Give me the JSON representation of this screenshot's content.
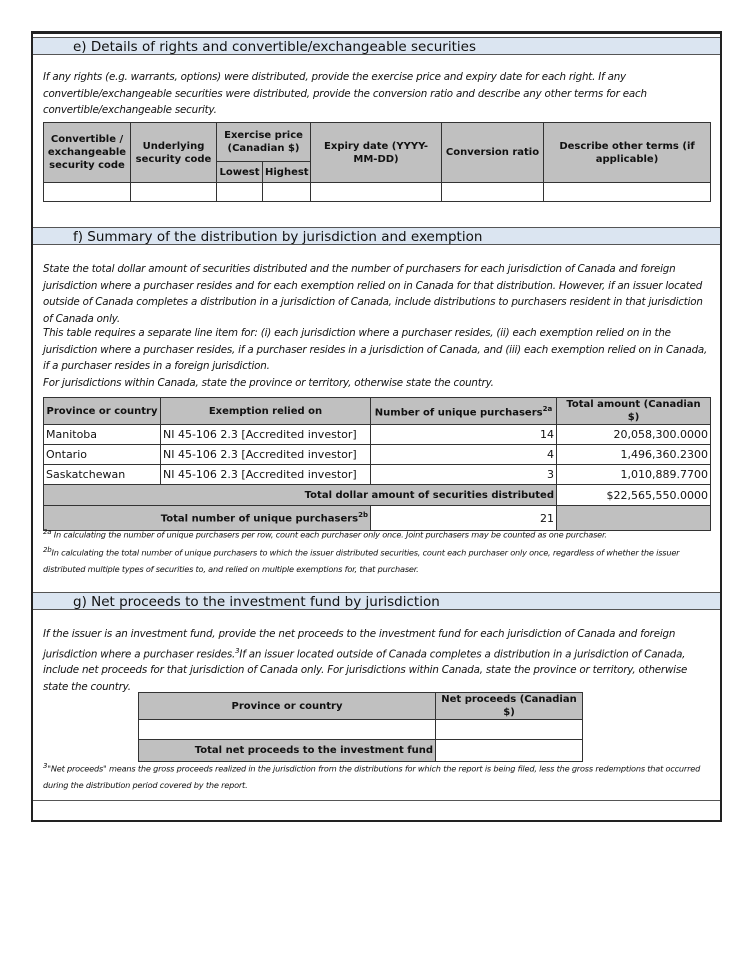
{
  "section_e": {
    "title": "e) Details of rights and convertible/exchangeable securities",
    "instructions": "If any rights (e.g. warrants, options) were distributed, provide the exercise price and expiry date for each right. If any convertible/exchangeable securities were distributed, provide the conversion ratio and describe any other terms for each convertible/exchangeable security.",
    "columns": {
      "code": "Convertible / exchangeable security code",
      "underlying": "Underlying security code",
      "exercise": "Exercise price (Canadian $)",
      "lowest": "Lowest",
      "highest": "Highest",
      "expiry": "Expiry date (YYYY-MM-DD)",
      "ratio": "Conversion ratio",
      "other": "Describe other terms (if applicable)"
    }
  },
  "section_f": {
    "title": "f) Summary of the distribution by jurisdiction and exemption",
    "para1": "State the total dollar amount of securities distributed and the number of purchasers for each jurisdiction of Canada and foreign jurisdiction where a purchaser resides and for each exemption relied on in Canada for that distribution. However, if an issuer located outside of Canada completes a distribution in a jurisdiction of Canada, include distributions to purchasers resident in that jurisdiction of Canada only.",
    "para2": "This table requires a separate line item for: (i) each jurisdiction where a purchaser resides, (ii) each exemption relied on in the jurisdiction where a purchaser resides, if a purchaser resides in a jurisdiction of Canada, and (iii) each exemption relied on in Canada, if a purchaser resides in a foreign jurisdiction.",
    "para3": "For jurisdictions within Canada, state the province or territory, otherwise state the country.",
    "columns": {
      "province": "Province or country",
      "exemption": "Exemption relied on",
      "purchasers": "Number of unique purchasers",
      "purchasers_sup": "2a",
      "amount": "Total amount (Canadian $)"
    },
    "rows": [
      {
        "province": "Manitoba",
        "exemption": "NI 45-106 2.3 [Accredited investor]",
        "purchasers": "14",
        "amount": "20,058,300.0000"
      },
      {
        "province": "Ontario",
        "exemption": "NI 45-106 2.3 [Accredited investor]",
        "purchasers": "4",
        "amount": "1,496,360.2300"
      },
      {
        "province": "Saskatchewan",
        "exemption": "NI 45-106 2.3 [Accredited investor]",
        "purchasers": "3",
        "amount": "1,010,889.7700"
      }
    ],
    "total_amount_label": "Total dollar amount of securities distributed",
    "total_amount": "$22,565,550.0000",
    "total_purchasers_label": "Total number of unique purchasers",
    "total_purchasers_sup": "2b",
    "total_purchasers": "21",
    "footnote_2a_mark": "2a",
    "footnote_2a": "In calculating the number of unique purchasers per row, count each purchaser only once. Joint purchasers may be counted as one purchaser.",
    "footnote_2b_mark": "2b",
    "footnote_2b": "In calculating the total number of unique purchasers to which the issuer distributed securities, count each purchaser only once, regardless of whether the issuer distributed multiple types of securities to, and relied on multiple exemptions for, that purchaser."
  },
  "section_g": {
    "title": "g) Net proceeds to the investment fund by jurisdiction",
    "para_a": "If the issuer is an investment fund, provide the net proceeds to the investment fund for each jurisdiction of Canada and foreign jurisdiction where a purchaser resides.",
    "para_sup": "3",
    "para_b": "If an issuer located outside of Canada completes a distribution in a jurisdiction of Canada, include net proceeds for that jurisdiction of Canada only. For jurisdictions within Canada, state the province or territory, otherwise state the country.",
    "columns": {
      "province": "Province or country",
      "net": "Net proceeds (Canadian $)"
    },
    "total_label": "Total net proceeds to the investment fund",
    "footnote_3_mark": "3",
    "footnote_3": "\"Net proceeds\" means the gross proceeds realized in the jurisdiction from the distributions for which the report is being filed, less the gross redemptions that occurred during the distribution period covered by the report."
  }
}
